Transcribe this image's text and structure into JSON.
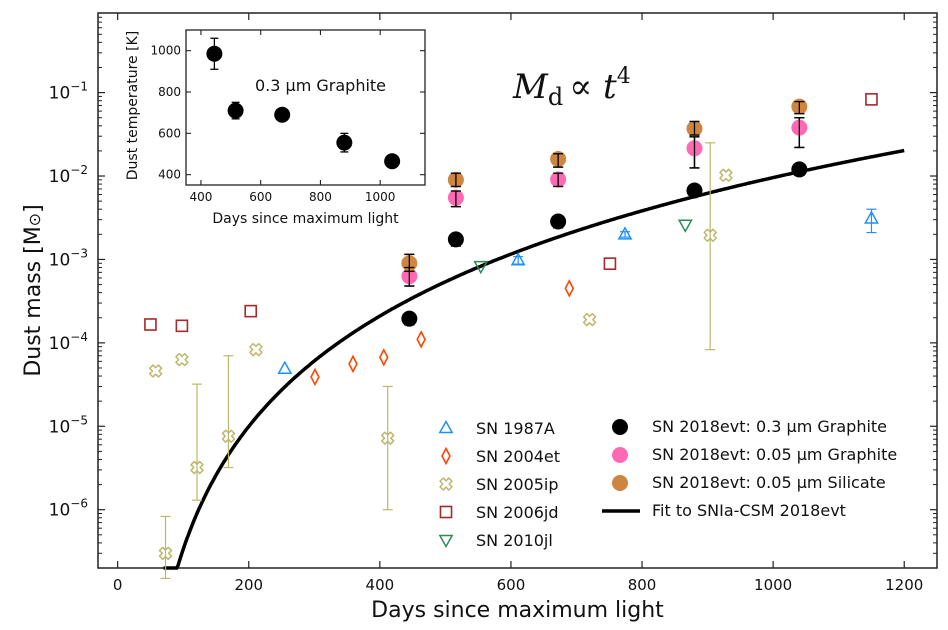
{
  "chart_data": [
    {
      "type": "scatter",
      "title": "",
      "annotation": {
        "main": "M",
        "sub": "d",
        "rel": "∝ t",
        "sup": "4"
      },
      "xlabel": "Days since maximum light",
      "ylabel": "Dust mass [M",
      "ylabel_symbol": "⊙",
      "ylabel_close": "]",
      "xlim": [
        -30,
        1250
      ],
      "ylim": [
        2e-07,
        0.9
      ],
      "yscale": "log",
      "xticks": [
        0,
        200,
        400,
        600,
        800,
        1000,
        1200
      ],
      "xtick_labels": [
        "0",
        "200",
        "400",
        "600",
        "800",
        "1000",
        "1200"
      ],
      "yticks": [
        1e-06,
        1e-05,
        0.0001,
        0.001,
        0.01,
        0.1
      ],
      "ytick_labels": [
        {
          "base": "10",
          "exp": "−6"
        },
        {
          "base": "10",
          "exp": "−5"
        },
        {
          "base": "10",
          "exp": "−4"
        },
        {
          "base": "10",
          "exp": "−3"
        },
        {
          "base": "10",
          "exp": "−2"
        },
        {
          "base": "10",
          "exp": "−1"
        }
      ],
      "grid": false,
      "legend_position": "lower-right",
      "series": [
        {
          "name": "SN 1987A",
          "marker": "triangle-up",
          "color": "#1e90ff",
          "filled": false,
          "points": [
            {
              "x": 255,
              "y": 4.9e-05
            },
            {
              "x": 611,
              "y": 0.00098,
              "ylo": 0.00088,
              "yhi": 0.00108
            },
            {
              "x": 774,
              "y": 0.002,
              "ylo": 0.00185,
              "yhi": 0.00215
            },
            {
              "x": 1150,
              "y": 0.0031,
              "ylo": 0.0021,
              "yhi": 0.004
            }
          ]
        },
        {
          "name": "SN 2004et",
          "marker": "diamond",
          "color": "#ff4500",
          "filled": false,
          "points": [
            {
              "x": 301,
              "y": 3.9e-05
            },
            {
              "x": 359,
              "y": 5.6e-05
            },
            {
              "x": 406,
              "y": 6.7e-05
            },
            {
              "x": 463,
              "y": 0.00011
            },
            {
              "x": 689,
              "y": 0.00045
            }
          ]
        },
        {
          "name": "SN 2005ip",
          "marker": "cross",
          "color": "#bdb76b",
          "filled": false,
          "points": [
            {
              "x": 58,
              "y": 4.6e-05
            },
            {
              "x": 73,
              "y": 3e-07,
              "ylo": 1.5e-07,
              "yhi": 8.3e-07
            },
            {
              "x": 98,
              "y": 6.3e-05
            },
            {
              "x": 121,
              "y": 3.2e-06,
              "ylo": 1.3e-06,
              "yhi": 3.2e-05
            },
            {
              "x": 169,
              "y": 7.6e-06,
              "ylo": 3.2e-06,
              "yhi": 7e-05
            },
            {
              "x": 211,
              "y": 8.3e-05
            },
            {
              "x": 412,
              "y": 7.2e-06,
              "ylo": 1e-06,
              "yhi": 3e-05
            },
            {
              "x": 720,
              "y": 0.00019
            },
            {
              "x": 904,
              "y": 0.00195,
              "ylo": 8.3e-05,
              "yhi": 0.025
            },
            {
              "x": 928,
              "y": 0.0102
            }
          ]
        },
        {
          "name": "SN 2006jd",
          "marker": "square",
          "color": "#a52a2a",
          "filled": false,
          "points": [
            {
              "x": 50,
              "y": 0.000166
            },
            {
              "x": 98,
              "y": 0.00016
            },
            {
              "x": 203,
              "y": 0.00024
            },
            {
              "x": 751,
              "y": 0.00089
            },
            {
              "x": 1150,
              "y": 0.083
            }
          ]
        },
        {
          "name": "SN 2010jl",
          "marker": "triangle-down",
          "color": "#2e8b57",
          "filled": false,
          "points": [
            {
              "x": 554,
              "y": 0.00083
            },
            {
              "x": 866,
              "y": 0.0026
            }
          ]
        },
        {
          "name": "SN 2018evt: 0.3 µm Graphite",
          "marker": "circle",
          "color": "#000000",
          "filled": true,
          "points": [
            {
              "x": 445,
              "y": 0.000195,
              "ylo": 0.000165,
              "yhi": 0.000215
            },
            {
              "x": 516,
              "y": 0.00174,
              "ylo": 0.00145,
              "yhi": 0.00195
            },
            {
              "x": 672,
              "y": 0.00285,
              "ylo": 0.0024,
              "yhi": 0.0032
            },
            {
              "x": 880,
              "y": 0.0067,
              "ylo": 0.0058,
              "yhi": 0.0075
            },
            {
              "x": 1040,
              "y": 0.012,
              "ylo": 0.0102,
              "yhi": 0.0135
            }
          ]
        },
        {
          "name": "SN 2018evt: 0.05 µm Graphite",
          "marker": "circle",
          "color": "#ff69b4",
          "filled": true,
          "points": [
            {
              "x": 445,
              "y": 0.00063,
              "ylo": 0.00048,
              "yhi": 0.0008
            },
            {
              "x": 516,
              "y": 0.0055,
              "ylo": 0.0043,
              "yhi": 0.0066
            },
            {
              "x": 672,
              "y": 0.0091,
              "ylo": 0.0075,
              "yhi": 0.0108
            },
            {
              "x": 880,
              "y": 0.0215,
              "ylo": 0.0125,
              "yhi": 0.0295
            },
            {
              "x": 1040,
              "y": 0.038,
              "ylo": 0.022,
              "yhi": 0.05
            }
          ]
        },
        {
          "name": "SN 2018evt: 0.05 µm Silicate",
          "marker": "circle",
          "color": "#cd853f",
          "filled": true,
          "points": [
            {
              "x": 445,
              "y": 0.0009,
              "ylo": 0.00072,
              "yhi": 0.00115
            },
            {
              "x": 516,
              "y": 0.009,
              "ylo": 0.0075,
              "yhi": 0.0108
            },
            {
              "x": 672,
              "y": 0.016,
              "ylo": 0.0128,
              "yhi": 0.0185
            },
            {
              "x": 880,
              "y": 0.037,
              "ylo": 0.031,
              "yhi": 0.045
            },
            {
              "x": 1040,
              "y": 0.068,
              "ylo": 0.056,
              "yhi": 0.078
            }
          ]
        }
      ],
      "fit": {
        "name": "Fit to SNIa-CSM 2018evt",
        "color": "#000000",
        "model": "M = A (t - t0)^4",
        "A": 1.06e-14,
        "t0": 25,
        "x_range": [
          70,
          1200
        ]
      }
    },
    {
      "type": "scatter",
      "title": "",
      "annotation": "0.3 µm Graphite",
      "xlabel": "Days since maximum light",
      "ylabel": "Dust temperature [K]",
      "xlim": [
        350,
        1150
      ],
      "ylim": [
        350,
        1100
      ],
      "xticks": [
        400,
        600,
        800,
        1000
      ],
      "xtick_labels": [
        "400",
        "600",
        "800",
        "1000"
      ],
      "yticks": [
        400,
        600,
        800,
        1000
      ],
      "ytick_labels": [
        "400",
        "600",
        "800",
        "1000"
      ],
      "grid": false,
      "placement": "inset upper-left",
      "series": [
        {
          "name": "0.3 µm Graphite",
          "marker": "circle",
          "color": "#000000",
          "filled": true,
          "points": [
            {
              "x": 445,
              "y": 985,
              "ylo": 910,
              "yhi": 1060
            },
            {
              "x": 516,
              "y": 710,
              "ylo": 670,
              "yhi": 750
            },
            {
              "x": 672,
              "y": 690,
              "ylo": 670,
              "yhi": 710
            },
            {
              "x": 880,
              "y": 555,
              "ylo": 510,
              "yhi": 600
            },
            {
              "x": 1040,
              "y": 465,
              "ylo": 440,
              "yhi": 490
            }
          ]
        }
      ]
    }
  ]
}
